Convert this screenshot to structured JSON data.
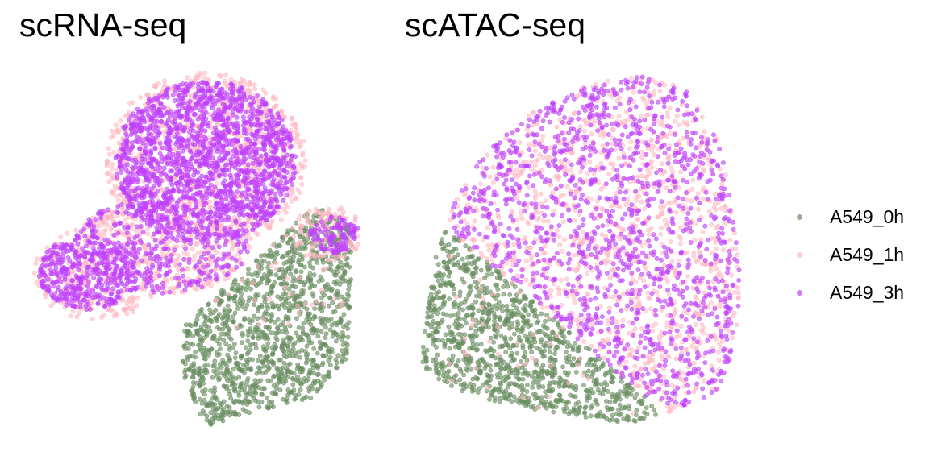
{
  "chart_data": [
    {
      "type": "scatter",
      "title": "scRNA-seq",
      "xlabel": "",
      "ylabel": "",
      "grid": false,
      "axes_visible": false,
      "series": [
        {
          "name": "A549_0h",
          "color": "#6b8e62",
          "n_points": 1300
        },
        {
          "name": "A549_1h",
          "color": "#ffb6c1",
          "n_points": 1800
        },
        {
          "name": "A549_3h",
          "color": "#bf40ff",
          "n_points": 2500
        }
      ]
    },
    {
      "type": "scatter",
      "title": "scATAC-seq",
      "xlabel": "",
      "ylabel": "",
      "grid": false,
      "axes_visible": false,
      "series": [
        {
          "name": "A549_0h",
          "color": "#6b8e62",
          "n_points": 1100
        },
        {
          "name": "A549_1h",
          "color": "#ffb6c1",
          "n_points": 1200
        },
        {
          "name": "A549_3h",
          "color": "#bf40ff",
          "n_points": 1300
        }
      ]
    }
  ],
  "legend": {
    "placement": "right",
    "items": [
      {
        "label": "A549_0h",
        "color": "#6b8e62"
      },
      {
        "label": "A549_1h",
        "color": "#ffb6c1"
      },
      {
        "label": "A549_3h",
        "color": "#bf40ff"
      }
    ]
  }
}
